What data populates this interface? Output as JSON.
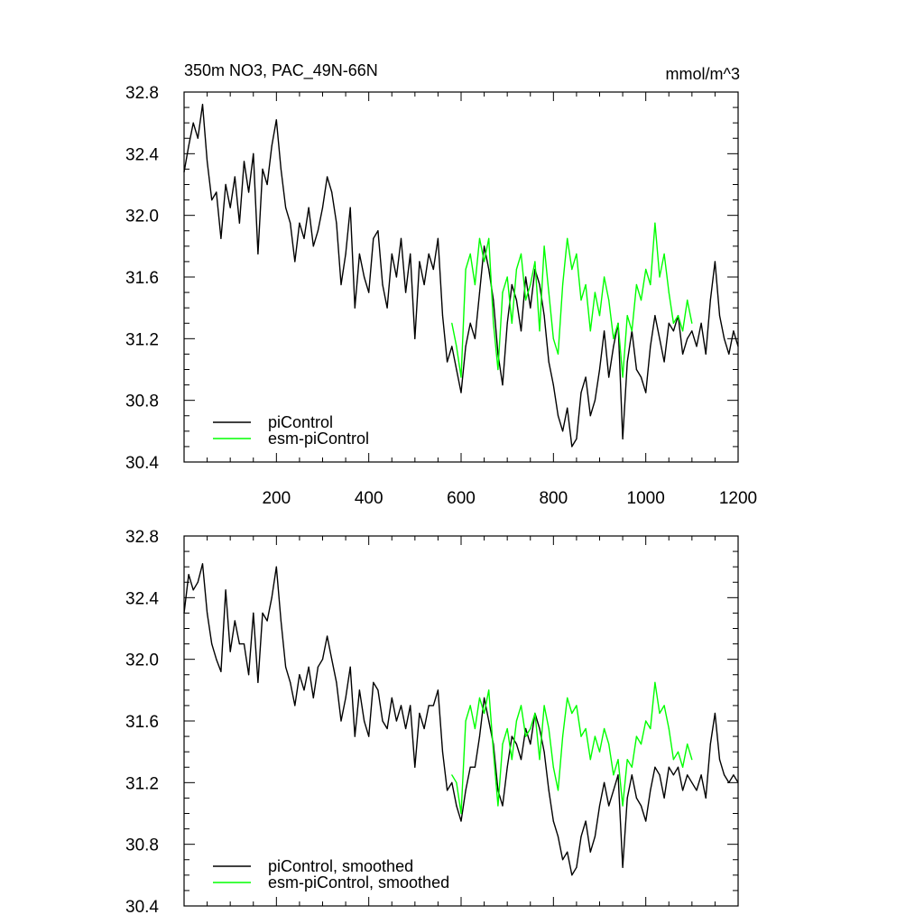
{
  "figure": {
    "title": "350m NO3, PAC_49N-66N",
    "units": "mmol/m^3"
  },
  "chart_data": [
    {
      "type": "line",
      "id": "top",
      "title": "350m NO3, PAC_49N-66N",
      "units_label": "mmol/m^3",
      "xlabel": "",
      "ylabel": "",
      "xlim": [
        0,
        1200
      ],
      "ylim": [
        30.4,
        32.8
      ],
      "xticks": [
        200,
        400,
        600,
        800,
        1000,
        1200
      ],
      "xtick_labels": [
        "200",
        "400",
        "600",
        "800",
        "1000",
        "1200"
      ],
      "yticks": [
        30.4,
        30.8,
        31.2,
        31.6,
        32.0,
        32.4,
        32.8
      ],
      "ytick_labels": [
        "30.4",
        "30.8",
        "31.2",
        "31.6",
        "32.0",
        "32.4",
        "32.8"
      ],
      "legend_position": "bottom-left",
      "series": [
        {
          "name": "piControl",
          "color": "#000000",
          "x": [
            0,
            10,
            20,
            30,
            40,
            50,
            60,
            70,
            80,
            90,
            100,
            110,
            120,
            130,
            140,
            150,
            160,
            170,
            180,
            190,
            200,
            210,
            220,
            230,
            240,
            250,
            260,
            270,
            280,
            290,
            300,
            310,
            320,
            330,
            340,
            350,
            360,
            370,
            380,
            390,
            400,
            410,
            420,
            430,
            440,
            450,
            460,
            470,
            480,
            490,
            500,
            510,
            520,
            530,
            540,
            550,
            560,
            570,
            580,
            590,
            600,
            610,
            620,
            630,
            640,
            650,
            660,
            670,
            680,
            690,
            700,
            710,
            720,
            730,
            740,
            750,
            760,
            770,
            780,
            790,
            800,
            810,
            820,
            830,
            840,
            850,
            860,
            870,
            880,
            890,
            900,
            910,
            920,
            930,
            940,
            950,
            960,
            970,
            980,
            990,
            1000,
            1010,
            1020,
            1030,
            1040,
            1050,
            1060,
            1070,
            1080,
            1090,
            1100,
            1110,
            1120,
            1130,
            1140,
            1150,
            1160,
            1170,
            1180,
            1190,
            1200
          ],
          "values": [
            32.28,
            32.45,
            32.6,
            32.5,
            32.72,
            32.35,
            32.1,
            32.15,
            31.85,
            32.2,
            32.05,
            32.25,
            31.95,
            32.35,
            32.15,
            32.4,
            31.75,
            32.3,
            32.2,
            32.45,
            32.62,
            32.3,
            32.05,
            31.95,
            31.7,
            31.95,
            31.85,
            32.05,
            31.8,
            31.9,
            32.05,
            32.25,
            32.15,
            31.95,
            31.55,
            31.75,
            32.05,
            31.4,
            31.75,
            31.6,
            31.5,
            31.85,
            31.9,
            31.55,
            31.4,
            31.75,
            31.6,
            31.85,
            31.5,
            31.75,
            31.2,
            31.7,
            31.55,
            31.75,
            31.65,
            31.85,
            31.35,
            31.05,
            31.15,
            31.0,
            30.85,
            31.15,
            31.3,
            31.2,
            31.5,
            31.8,
            31.65,
            31.45,
            31.1,
            30.9,
            31.3,
            31.55,
            31.45,
            31.25,
            31.6,
            31.4,
            31.65,
            31.55,
            31.35,
            31.05,
            30.9,
            30.7,
            30.6,
            30.75,
            30.5,
            30.55,
            30.85,
            30.95,
            30.7,
            30.8,
            31.0,
            31.25,
            30.95,
            31.15,
            31.3,
            30.55,
            31.05,
            31.25,
            31.0,
            30.95,
            30.85,
            31.15,
            31.35,
            31.2,
            31.05,
            31.3,
            31.25,
            31.35,
            31.1,
            31.2,
            31.25,
            31.15,
            31.3,
            31.1,
            31.45,
            31.7,
            31.35,
            31.2,
            31.1,
            31.25,
            31.15
          ]
        },
        {
          "name": "esm-piControl",
          "color": "#00ff00",
          "x": [
            580,
            590,
            600,
            610,
            620,
            630,
            640,
            650,
            660,
            670,
            680,
            690,
            700,
            710,
            720,
            730,
            740,
            750,
            760,
            770,
            780,
            790,
            800,
            810,
            820,
            830,
            840,
            850,
            860,
            870,
            880,
            890,
            900,
            910,
            920,
            930,
            940,
            950,
            960,
            970,
            980,
            990,
            1000,
            1010,
            1020,
            1030,
            1040,
            1050,
            1060,
            1070,
            1080,
            1090,
            1100
          ],
          "values": [
            31.3,
            31.15,
            30.95,
            31.65,
            31.75,
            31.55,
            31.85,
            31.7,
            31.85,
            31.3,
            31.0,
            31.5,
            31.6,
            31.3,
            31.65,
            31.75,
            31.45,
            31.55,
            31.7,
            31.25,
            31.8,
            31.5,
            31.2,
            31.1,
            31.55,
            31.85,
            31.65,
            31.75,
            31.45,
            31.55,
            31.25,
            31.5,
            31.35,
            31.6,
            31.45,
            31.2,
            31.3,
            30.95,
            31.35,
            31.25,
            31.55,
            31.45,
            31.65,
            31.55,
            31.95,
            31.6,
            31.75,
            31.5,
            31.3,
            31.35,
            31.25,
            31.45,
            31.3
          ]
        }
      ]
    },
    {
      "type": "line",
      "id": "bottom",
      "title": "",
      "xlabel": "",
      "ylabel": "",
      "xlim": [
        0,
        1200
      ],
      "ylim": [
        30.4,
        32.8
      ],
      "yticks": [
        30.4,
        30.8,
        31.2,
        31.6,
        32.0,
        32.4,
        32.8
      ],
      "ytick_labels": [
        "30.4",
        "30.8",
        "31.2",
        "31.6",
        "32.0",
        "32.4",
        "32.8"
      ],
      "legend_position": "bottom-left",
      "series": [
        {
          "name": "piControl, smoothed",
          "color": "#000000",
          "x": [
            0,
            10,
            20,
            30,
            40,
            50,
            60,
            70,
            80,
            90,
            100,
            110,
            120,
            130,
            140,
            150,
            160,
            170,
            180,
            190,
            200,
            210,
            220,
            230,
            240,
            250,
            260,
            270,
            280,
            290,
            300,
            310,
            320,
            330,
            340,
            350,
            360,
            370,
            380,
            390,
            400,
            410,
            420,
            430,
            440,
            450,
            460,
            470,
            480,
            490,
            500,
            510,
            520,
            530,
            540,
            550,
            560,
            570,
            580,
            590,
            600,
            610,
            620,
            630,
            640,
            650,
            660,
            670,
            680,
            690,
            700,
            710,
            720,
            730,
            740,
            750,
            760,
            770,
            780,
            790,
            800,
            810,
            820,
            830,
            840,
            850,
            860,
            870,
            880,
            890,
            900,
            910,
            920,
            930,
            940,
            950,
            960,
            970,
            980,
            990,
            1000,
            1010,
            1020,
            1030,
            1040,
            1050,
            1060,
            1070,
            1080,
            1090,
            1100,
            1110,
            1120,
            1130,
            1140,
            1150,
            1160,
            1170,
            1180,
            1190,
            1200
          ],
          "values": [
            32.3,
            32.55,
            32.45,
            32.5,
            32.62,
            32.3,
            32.1,
            32.0,
            31.92,
            32.45,
            32.05,
            32.25,
            32.1,
            32.1,
            31.9,
            32.3,
            31.85,
            32.3,
            32.25,
            32.4,
            32.6,
            32.25,
            31.95,
            31.85,
            31.7,
            31.9,
            31.8,
            31.95,
            31.75,
            31.95,
            32.0,
            32.15,
            32.0,
            31.85,
            31.6,
            31.75,
            31.95,
            31.5,
            31.8,
            31.6,
            31.5,
            31.85,
            31.8,
            31.6,
            31.55,
            31.75,
            31.6,
            31.7,
            31.55,
            31.7,
            31.3,
            31.65,
            31.55,
            31.7,
            31.7,
            31.8,
            31.4,
            31.15,
            31.2,
            31.05,
            30.95,
            31.15,
            31.3,
            31.3,
            31.5,
            31.75,
            31.6,
            31.45,
            31.15,
            31.05,
            31.3,
            31.5,
            31.45,
            31.35,
            31.55,
            31.45,
            31.65,
            31.55,
            31.4,
            31.15,
            30.95,
            30.85,
            30.7,
            30.75,
            30.6,
            30.65,
            30.85,
            30.95,
            30.75,
            30.85,
            31.05,
            31.2,
            31.05,
            31.15,
            31.25,
            30.65,
            31.1,
            31.25,
            31.1,
            31.05,
            30.95,
            31.15,
            31.3,
            31.25,
            31.1,
            31.3,
            31.25,
            31.3,
            31.15,
            31.25,
            31.2,
            31.15,
            31.25,
            31.1,
            31.45,
            31.65,
            31.35,
            31.25,
            31.2,
            31.25,
            31.2
          ]
        },
        {
          "name": "esm-piControl, smoothed",
          "color": "#00ff00",
          "x": [
            580,
            590,
            600,
            610,
            620,
            630,
            640,
            650,
            660,
            670,
            680,
            690,
            700,
            710,
            720,
            730,
            740,
            750,
            760,
            770,
            780,
            790,
            800,
            810,
            820,
            830,
            840,
            850,
            860,
            870,
            880,
            890,
            900,
            910,
            920,
            930,
            940,
            950,
            960,
            970,
            980,
            990,
            1000,
            1010,
            1020,
            1030,
            1040,
            1050,
            1060,
            1070,
            1080,
            1090,
            1100
          ],
          "values": [
            31.25,
            31.2,
            31.0,
            31.6,
            31.7,
            31.55,
            31.75,
            31.65,
            31.8,
            31.4,
            31.05,
            31.45,
            31.55,
            31.35,
            31.6,
            31.7,
            31.5,
            31.55,
            31.65,
            31.35,
            31.7,
            31.55,
            31.3,
            31.15,
            31.5,
            31.75,
            31.65,
            31.7,
            31.5,
            31.55,
            31.35,
            31.5,
            31.4,
            31.55,
            31.45,
            31.25,
            31.35,
            31.05,
            31.35,
            31.3,
            31.5,
            31.45,
            31.6,
            31.55,
            31.85,
            31.65,
            31.7,
            31.55,
            31.35,
            31.4,
            31.3,
            31.45,
            31.35
          ]
        }
      ]
    }
  ]
}
